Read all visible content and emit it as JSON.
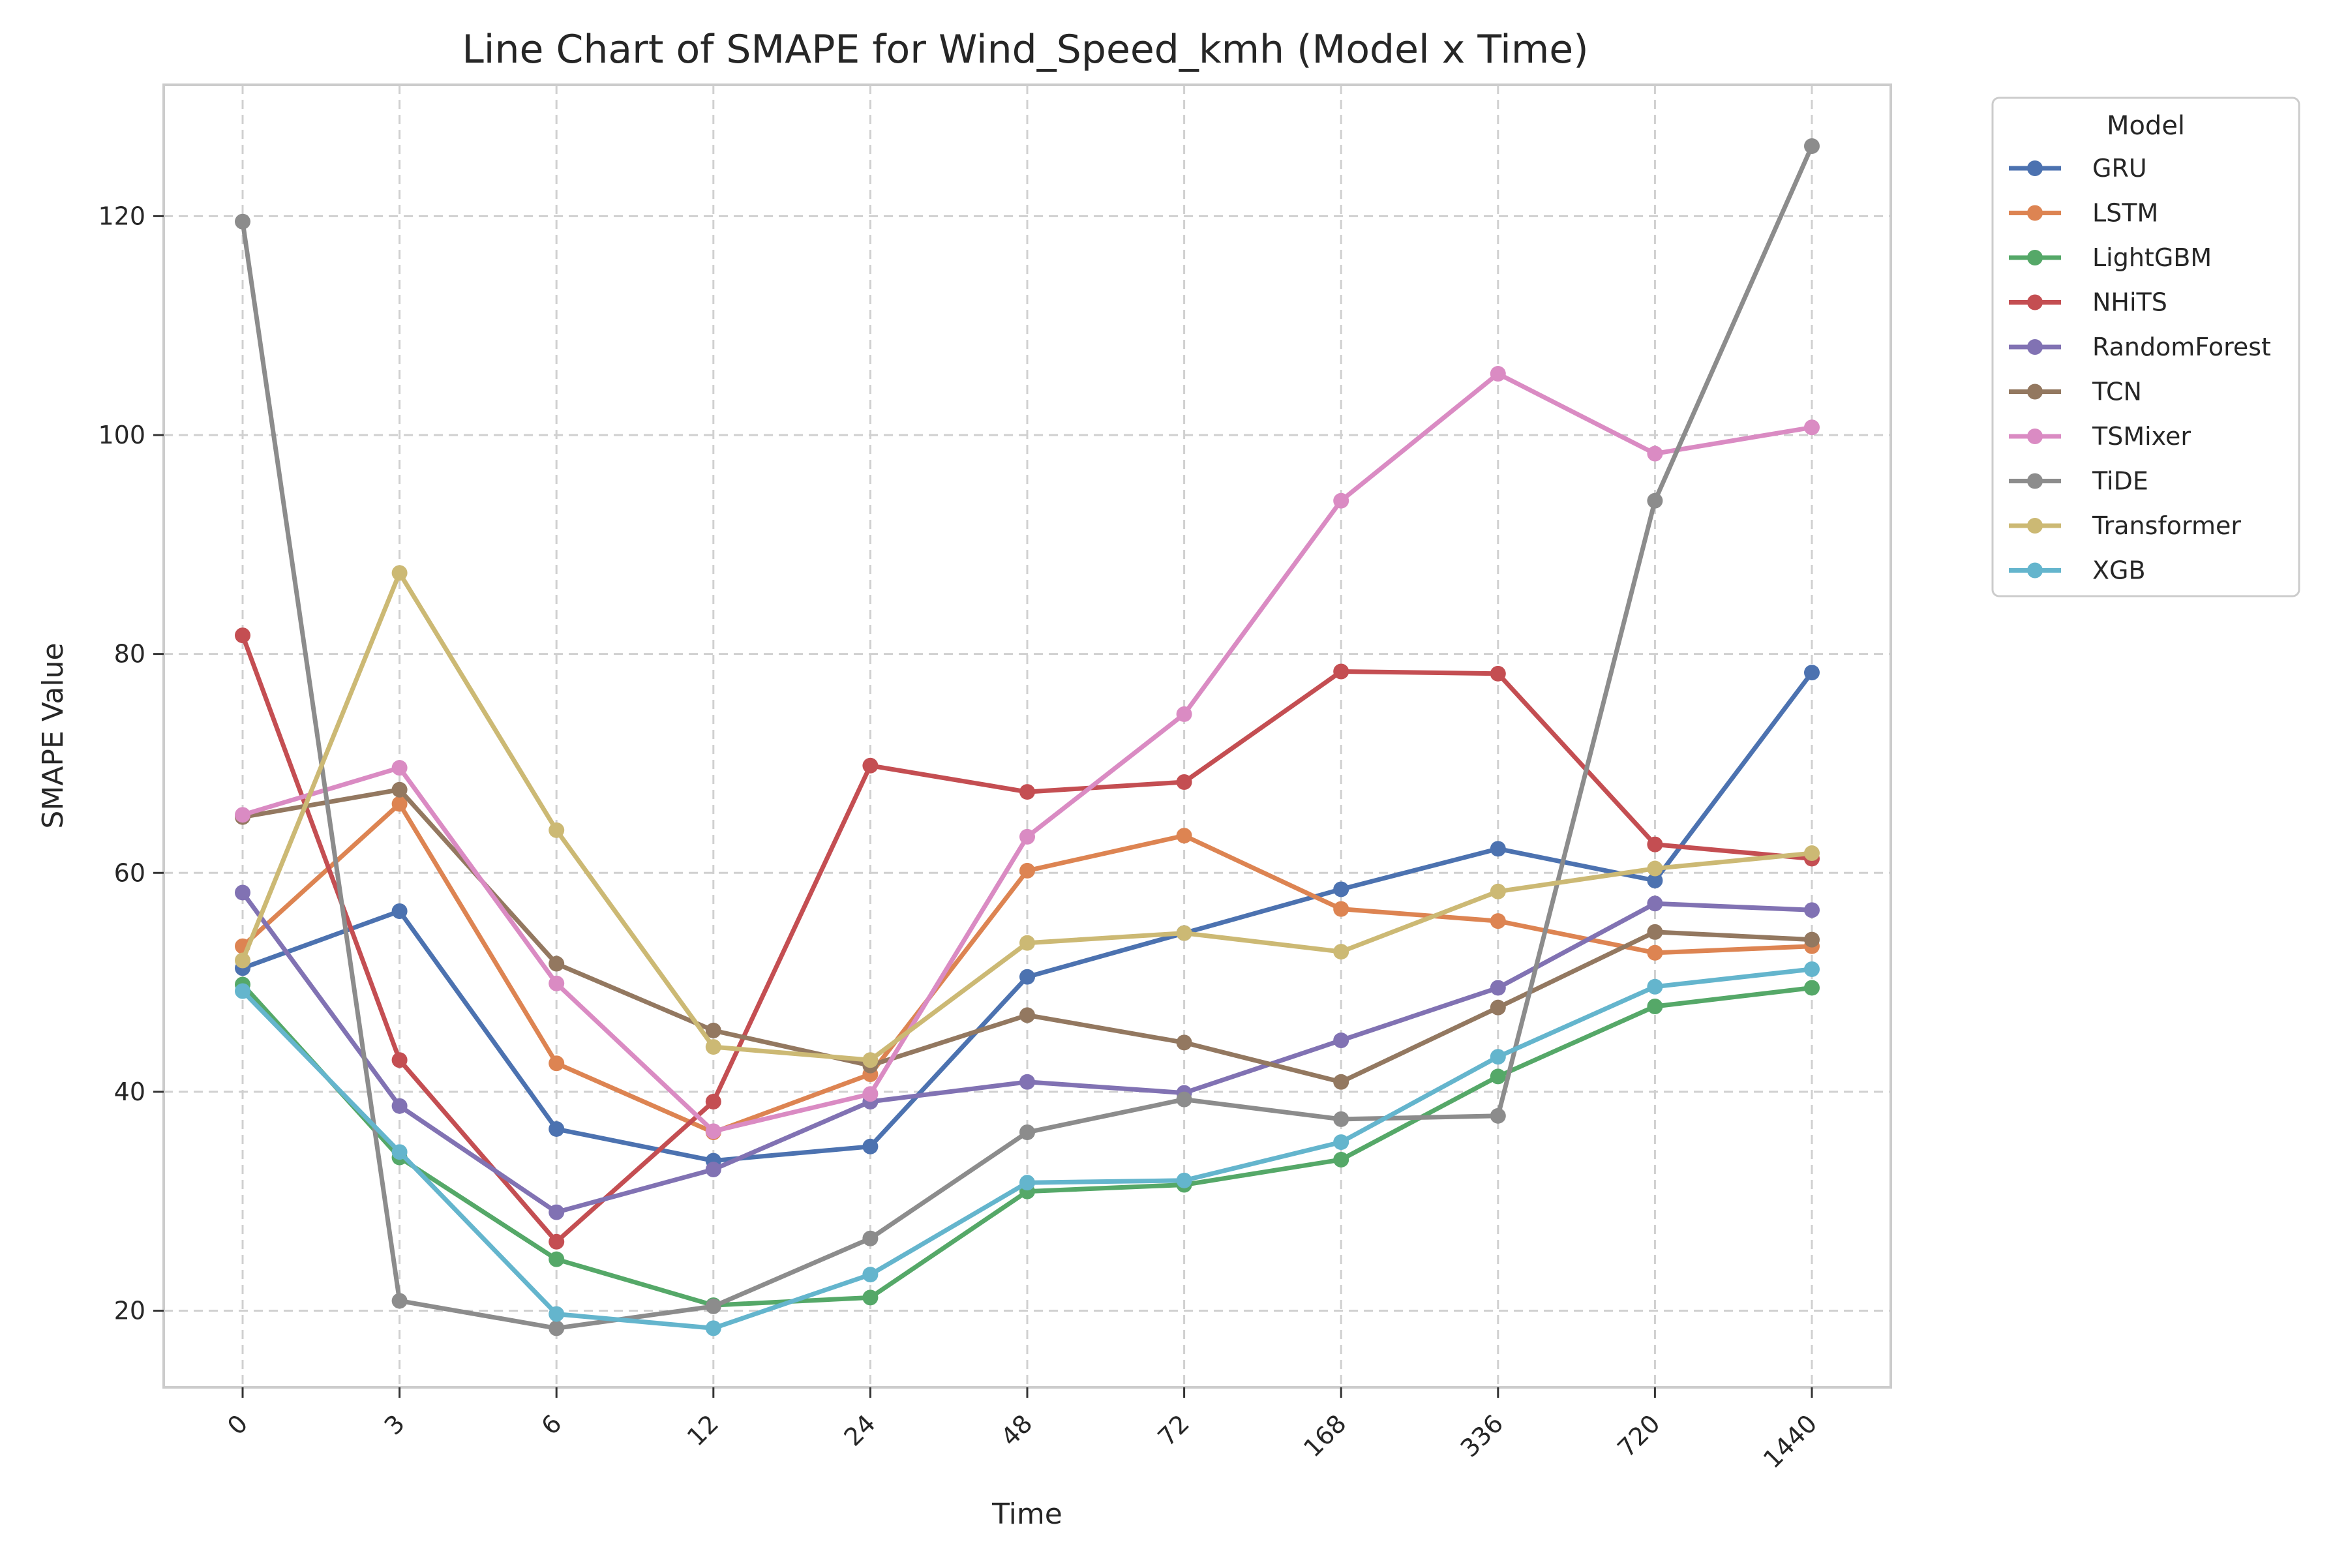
{
  "chart_data": {
    "type": "line",
    "title": "Line Chart of SMAPE for Wind_Speed_kmh (Model x Time)",
    "xlabel": "Time",
    "ylabel": "SMAPE Value",
    "categories": [
      "0",
      "3",
      "6",
      "12",
      "24",
      "48",
      "72",
      "168",
      "336",
      "720",
      "1440"
    ],
    "y_ticks": [
      "20",
      "40",
      "60",
      "80",
      "100",
      "120"
    ],
    "ylim": [
      13,
      132
    ],
    "grid": true,
    "legend": {
      "title": "Model",
      "placement": "outside-top-right"
    },
    "series": [
      {
        "name": "GRU",
        "color": "#4c72b0",
        "values": [
          51.3,
          56.5,
          36.6,
          33.7,
          35.0,
          50.5,
          54.5,
          58.5,
          62.2,
          59.3,
          78.3
        ]
      },
      {
        "name": "LSTM",
        "color": "#dd8452",
        "values": [
          53.3,
          66.3,
          42.6,
          36.3,
          41.6,
          60.2,
          63.4,
          56.7,
          55.6,
          52.7,
          53.3
        ]
      },
      {
        "name": "LightGBM",
        "color": "#55a868",
        "values": [
          49.8,
          34.0,
          24.7,
          20.5,
          21.2,
          30.9,
          31.5,
          33.8,
          41.4,
          47.8,
          49.5
        ]
      },
      {
        "name": "NHiTS",
        "color": "#c44e52",
        "values": [
          81.7,
          42.9,
          26.3,
          39.1,
          69.8,
          67.4,
          68.3,
          78.4,
          78.2,
          62.6,
          61.3
        ]
      },
      {
        "name": "RandomForest",
        "color": "#8172b3",
        "values": [
          58.2,
          38.7,
          29.0,
          32.9,
          39.1,
          40.9,
          39.9,
          44.7,
          49.5,
          57.2,
          56.6
        ]
      },
      {
        "name": "TCN",
        "color": "#937860",
        "values": [
          65.1,
          67.6,
          51.7,
          45.6,
          42.4,
          47.0,
          44.5,
          40.9,
          47.7,
          54.6,
          53.9
        ]
      },
      {
        "name": "TSMixer",
        "color": "#da8bc3",
        "values": [
          65.3,
          69.6,
          49.9,
          36.4,
          39.8,
          63.3,
          74.5,
          94.0,
          105.6,
          98.3,
          100.7
        ]
      },
      {
        "name": "TiDE",
        "color": "#8c8c8c",
        "values": [
          119.5,
          20.9,
          18.4,
          20.4,
          26.6,
          36.3,
          39.3,
          37.5,
          37.8,
          94.0,
          126.4
        ]
      },
      {
        "name": "Transformer",
        "color": "#ccb974",
        "values": [
          52.0,
          87.4,
          63.9,
          44.1,
          42.9,
          53.6,
          54.5,
          52.8,
          58.3,
          60.4,
          61.8
        ]
      },
      {
        "name": "XGB",
        "color": "#64b5cd",
        "values": [
          49.2,
          34.5,
          19.7,
          18.4,
          23.3,
          31.7,
          31.9,
          35.4,
          43.2,
          49.6,
          51.2
        ]
      }
    ]
  }
}
